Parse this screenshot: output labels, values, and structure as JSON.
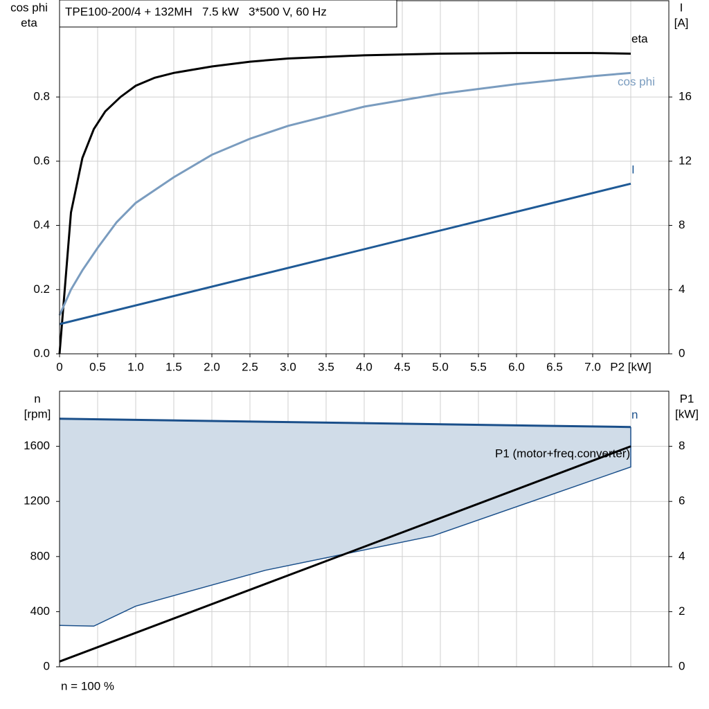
{
  "chart_data": [
    {
      "type": "line",
      "title": "TPE100-200/4 + 132MH   7.5 kW   3*500 V, 60 Hz",
      "ylabel": [
        "cos phi",
        "eta"
      ],
      "y2label": [
        "I",
        "[A]"
      ],
      "xlim": [
        0,
        8
      ],
      "xticks": [
        0,
        0.5,
        {
          "value": 1,
          "label": "1.0"
        },
        1.5,
        {
          "value": 2,
          "label": "2.0"
        },
        2.5,
        {
          "value": 3,
          "label": "3.0"
        },
        3.5,
        {
          "value": 4,
          "label": "4.0"
        },
        4.5,
        {
          "value": 5,
          "label": "5.0"
        },
        5.5,
        {
          "value": 6,
          "label": "6.0"
        },
        6.5,
        {
          "value": 7,
          "label": "7.0"
        },
        {
          "value": 7.5,
          "label": "P2 [kW]"
        }
      ],
      "ylim": [
        0,
        1.1
      ],
      "yticks": [
        {
          "value": 0,
          "label": "0.0"
        },
        0.2,
        0.4,
        0.6,
        0.8
      ],
      "y2lim": [
        0,
        22
      ],
      "y2ticks": [
        0,
        4,
        8,
        12,
        16
      ],
      "grid": true,
      "series": [
        {
          "name": "eta",
          "color": "#000000",
          "x": [
            0,
            0.15,
            0.3,
            0.45,
            0.6,
            0.8,
            1,
            1.25,
            1.5,
            2,
            2.5,
            3,
            4,
            5,
            6,
            7,
            7.5
          ],
          "values": [
            0,
            0.44,
            0.61,
            0.7,
            0.755,
            0.8,
            0.835,
            0.86,
            0.875,
            0.895,
            0.91,
            0.92,
            0.93,
            0.935,
            0.937,
            0.937,
            0.935
          ]
        },
        {
          "name": "cos phi",
          "color": "#7a9cbf",
          "x": [
            0,
            0.15,
            0.3,
            0.5,
            0.75,
            1,
            1.5,
            2,
            2.5,
            3,
            4,
            5,
            6,
            7,
            7.5
          ],
          "values": [
            0.12,
            0.2,
            0.26,
            0.33,
            0.41,
            0.47,
            0.55,
            0.62,
            0.67,
            0.71,
            0.77,
            0.81,
            0.84,
            0.865,
            0.875
          ]
        },
        {
          "name": "I",
          "color": "#1f5a96",
          "axis": "y2",
          "x": [
            0,
            7.5
          ],
          "values": [
            1.85,
            10.6
          ]
        }
      ]
    },
    {
      "type": "line",
      "ylabel": [
        "n",
        "[rpm]"
      ],
      "y2label": [
        "P1",
        "[kW]"
      ],
      "note": "n = 100 %",
      "xlim": [
        0,
        8
      ],
      "xticks": [
        0,
        0.5,
        1,
        1.5,
        2,
        2.5,
        3,
        3.5,
        4,
        4.5,
        5,
        5.5,
        6,
        6.5,
        7,
        7.5
      ],
      "xtick_labels": false,
      "ylim": [
        0,
        2000
      ],
      "yticks": [
        0,
        400,
        800,
        1200,
        1600
      ],
      "y2lim": [
        0,
        10
      ],
      "y2ticks": [
        0,
        2,
        4,
        6,
        8
      ],
      "grid": true,
      "series": [
        {
          "name": "n",
          "color": "#1a4f8a",
          "fill": "#d0dce8",
          "x": [
            0,
            7.5
          ],
          "values": [
            1800,
            1740
          ],
          "lower_limit": {
            "x": [
              0,
              0.45,
              1,
              2.7,
              4.9,
              7.5
            ],
            "values": [
              300,
              295,
              440,
              700,
              950,
              1450
            ]
          }
        },
        {
          "name": "P1 (motor+freq.converter)",
          "color": "#000000",
          "axis": "y2",
          "x": [
            0,
            7.5
          ],
          "values": [
            0.19,
            8
          ]
        }
      ]
    }
  ]
}
